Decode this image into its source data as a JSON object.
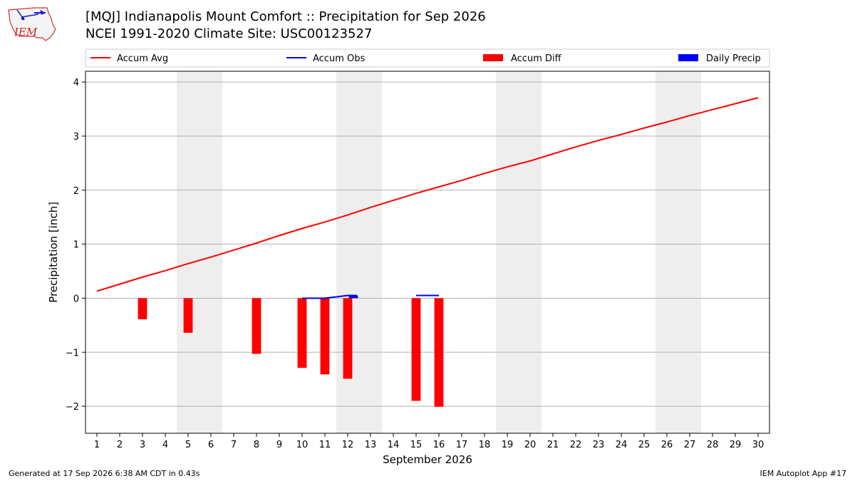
{
  "logo_text": "IEM",
  "title_line1": "[MQJ] Indianapolis Mount Comfort :: Precipitation for Sep 2026",
  "title_line2": "NCEI 1991-2020 Climate Site: USC00123527",
  "footer_left": "Generated at 17 Sep 2026 6:38 AM CDT in 0.43s",
  "footer_right": "IEM Autoplot App #17",
  "colors": {
    "avg": "#ff0000",
    "obs": "#0000ff",
    "diff": "#ff0000",
    "daily": "#0000ff",
    "weekend": "#eeeeee",
    "grid": "#b0b0b0"
  },
  "chart_data": {
    "type": "bar",
    "xlabel": "September 2026",
    "ylabel": "Precipitation [inch]",
    "xlim": [
      0.5,
      30.5
    ],
    "ylim": [
      -2.5,
      4.2
    ],
    "x_ticks": [
      1,
      2,
      3,
      4,
      5,
      6,
      7,
      8,
      9,
      10,
      11,
      12,
      13,
      14,
      15,
      16,
      17,
      18,
      19,
      20,
      21,
      22,
      23,
      24,
      25,
      26,
      27,
      28,
      29,
      30
    ],
    "y_ticks": [
      -2,
      -1,
      0,
      1,
      2,
      3,
      4
    ],
    "grid": "horizontal",
    "weekend_days": [
      5,
      6,
      12,
      13,
      19,
      20,
      26,
      27
    ],
    "legend": {
      "placement": "top",
      "entries": [
        {
          "key": "avg",
          "label": "Accum Avg",
          "kind": "line"
        },
        {
          "key": "obs",
          "label": "Accum Obs",
          "kind": "line"
        },
        {
          "key": "diff",
          "label": "Accum Diff",
          "kind": "bar"
        },
        {
          "key": "daily",
          "label": "Daily Precip",
          "kind": "bar"
        }
      ]
    },
    "accum_avg": {
      "x": [
        1,
        2,
        3,
        4,
        5,
        6,
        7,
        8,
        9,
        10,
        11,
        12,
        13,
        14,
        15,
        16,
        17,
        18,
        19,
        20,
        21,
        22,
        23,
        24,
        25,
        26,
        27,
        28,
        29,
        30
      ],
      "values": [
        0.13,
        0.26,
        0.39,
        0.51,
        0.64,
        0.76,
        0.89,
        1.02,
        1.16,
        1.29,
        1.41,
        1.54,
        1.68,
        1.81,
        1.94,
        2.06,
        2.18,
        2.31,
        2.43,
        2.54,
        2.67,
        2.8,
        2.92,
        3.03,
        3.15,
        3.26,
        3.38,
        3.49,
        3.6,
        3.71
      ]
    },
    "accum_obs": {
      "segments": [
        {
          "x": [
            10,
            11,
            12,
            12.4
          ],
          "values": [
            0.0,
            0.0,
            0.05,
            0.05
          ]
        },
        {
          "x": [
            15,
            16
          ],
          "values": [
            0.05,
            0.05
          ]
        }
      ]
    },
    "accum_diff": {
      "x": [
        3,
        5,
        8,
        10,
        11,
        12,
        15,
        16
      ],
      "values": [
        -0.39,
        -0.64,
        -1.03,
        -1.29,
        -1.41,
        -1.49,
        -1.9,
        -2.01
      ]
    },
    "daily_precip": {
      "x": [
        12
      ],
      "values": [
        0.05
      ]
    }
  }
}
